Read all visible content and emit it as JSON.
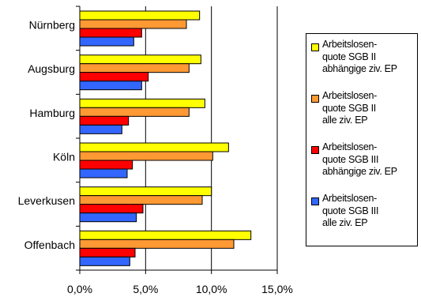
{
  "chart_data": {
    "type": "bar",
    "orientation": "horizontal",
    "categories": [
      "Nürnberg",
      "Augsburg",
      "Hamburg",
      "Köln",
      "Leverkusen",
      "Offenbach"
    ],
    "series": [
      {
        "name": "Arbeitslosen-\nquote SGB II\nabhängige ziv. EP",
        "color": "#ffff00",
        "values": [
          9.1,
          9.2,
          9.5,
          11.3,
          10.0,
          13.0
        ]
      },
      {
        "name": "Arbeitslosen-\nquote SGB II\nalle ziv. EP",
        "color": "#ff9933",
        "values": [
          8.1,
          8.3,
          8.3,
          10.1,
          9.3,
          11.7
        ]
      },
      {
        "name": "Arbeitslosen-\nquote SGB III\nabhängige ziv. EP",
        "color": "#ff0000",
        "values": [
          4.7,
          5.2,
          3.7,
          4.0,
          4.8,
          4.2
        ]
      },
      {
        "name": "Arbeitslosen-\nquote SGB III\nalle ziv. EP",
        "color": "#3366ff",
        "values": [
          4.1,
          4.7,
          3.2,
          3.6,
          4.3,
          3.8
        ]
      }
    ],
    "x_ticks": [
      "0,0%",
      "5,0%",
      "10,0%",
      "15,0%"
    ],
    "xlim": [
      0,
      15
    ],
    "title": "",
    "xlabel": "",
    "ylabel": "",
    "grid": "vertical lines at major ticks",
    "legend_position": "right"
  }
}
